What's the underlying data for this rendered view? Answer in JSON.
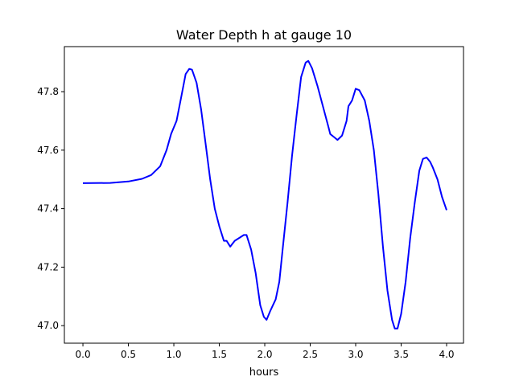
{
  "chart_data": {
    "type": "line",
    "title": "Water Depth h at gauge 10",
    "xlabel": "hours",
    "ylabel": "",
    "xlim": [
      -0.204,
      4.186
    ],
    "ylim": [
      46.94,
      47.954
    ],
    "xticks": [
      0.0,
      0.5,
      1.0,
      1.5,
      2.0,
      2.5,
      3.0,
      3.5,
      4.0
    ],
    "xtick_labels": [
      "0.0",
      "0.5",
      "1.0",
      "1.5",
      "2.0",
      "2.5",
      "3.0",
      "3.5",
      "4.0"
    ],
    "yticks": [
      47.0,
      47.2,
      47.4,
      47.6,
      47.8
    ],
    "ytick_labels": [
      "47.0",
      "47.2",
      "47.4",
      "47.6",
      "47.8"
    ],
    "grid": false,
    "series": [
      {
        "name": "h",
        "color": "#0000ff",
        "x": [
          0.0,
          0.3,
          0.5,
          0.65,
          0.75,
          0.85,
          0.92,
          0.97,
          1.03,
          1.08,
          1.13,
          1.17,
          1.2,
          1.25,
          1.3,
          1.35,
          1.4,
          1.45,
          1.5,
          1.55,
          1.58,
          1.62,
          1.67,
          1.72,
          1.77,
          1.8,
          1.85,
          1.9,
          1.95,
          1.99,
          2.02,
          2.06,
          2.12,
          2.16,
          2.2,
          2.25,
          2.3,
          2.35,
          2.4,
          2.45,
          2.48,
          2.52,
          2.58,
          2.64,
          2.7,
          2.72,
          2.76,
          2.8,
          2.85,
          2.9,
          2.92,
          2.96,
          3.0,
          3.04,
          3.1,
          3.15,
          3.2,
          3.25,
          3.3,
          3.35,
          3.4,
          3.43,
          3.46,
          3.5,
          3.55,
          3.6,
          3.65,
          3.7,
          3.74,
          3.78,
          3.82,
          3.85,
          3.9,
          3.95,
          4.0
        ],
        "y": [
          47.487,
          47.488,
          47.493,
          47.502,
          47.515,
          47.545,
          47.6,
          47.655,
          47.7,
          47.78,
          47.86,
          47.878,
          47.875,
          47.83,
          47.74,
          47.62,
          47.5,
          47.4,
          47.34,
          47.29,
          47.29,
          47.27,
          47.29,
          47.3,
          47.31,
          47.31,
          47.26,
          47.18,
          47.07,
          47.03,
          47.02,
          47.05,
          47.09,
          47.15,
          47.27,
          47.42,
          47.58,
          47.72,
          47.85,
          47.9,
          47.905,
          47.88,
          47.82,
          47.75,
          47.68,
          47.655,
          47.645,
          47.635,
          47.65,
          47.7,
          47.75,
          47.77,
          47.81,
          47.805,
          47.77,
          47.7,
          47.6,
          47.45,
          47.27,
          47.12,
          47.02,
          46.99,
          46.99,
          47.04,
          47.15,
          47.3,
          47.42,
          47.53,
          47.57,
          47.575,
          47.56,
          47.54,
          47.5,
          47.44,
          47.395
        ]
      }
    ]
  }
}
